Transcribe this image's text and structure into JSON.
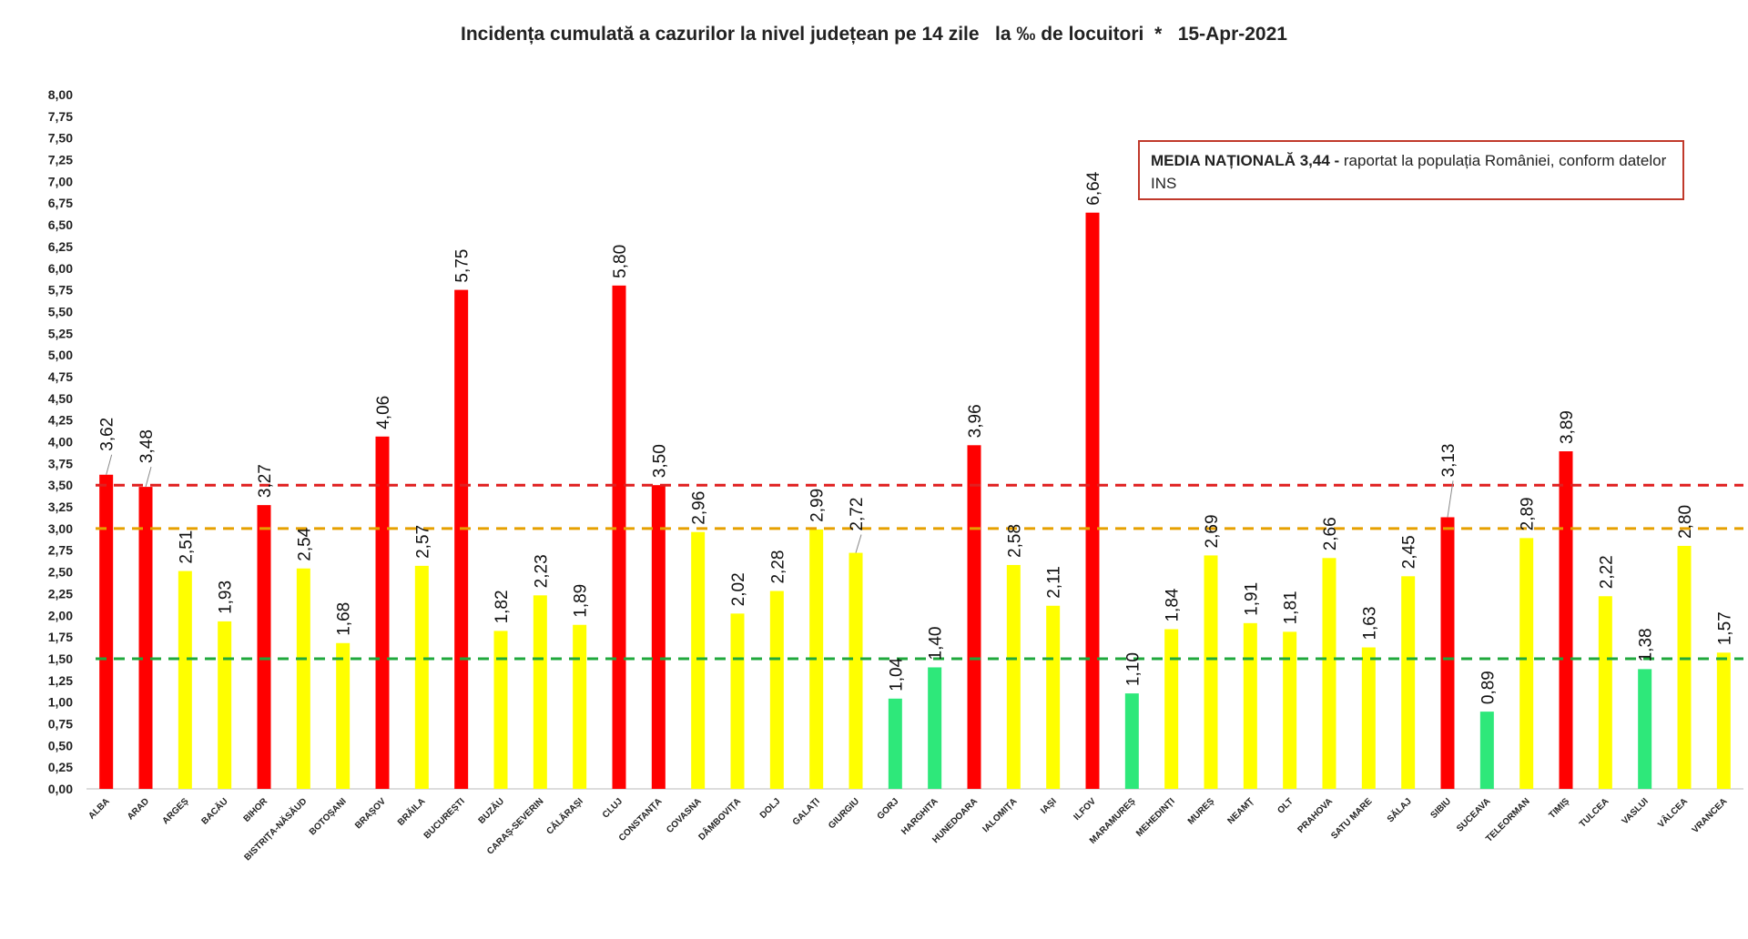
{
  "title": "Incidența cumulată a cazurilor la nivel județean pe 14 zile   la ‰ de locuitori  *   15-Apr-2021",
  "note": {
    "bold": "MEDIA NAȚIONALĂ 3,44 -",
    "text": " raportat la populația României, conform datelor INS"
  },
  "colors": {
    "red": "#ff0000",
    "yellow": "#ffff00",
    "green": "#2ee87a",
    "line_red": "#e02020",
    "line_orange": "#e6a000",
    "line_green": "#1fa83c"
  },
  "chart_data": {
    "type": "bar",
    "ylim": [
      0,
      8
    ],
    "ytick_step": 0.25,
    "grid": false,
    "reference_lines": [
      {
        "value": 3.5,
        "color": "red",
        "style": "dashed"
      },
      {
        "value": 3.0,
        "color": "orange",
        "style": "dashed"
      },
      {
        "value": 1.5,
        "color": "green",
        "style": "dashed"
      }
    ],
    "categories": [
      "ALBA",
      "ARAD",
      "ARGEȘ",
      "BACĂU",
      "BIHOR",
      "BISTRIȚA-NĂSĂUD",
      "BOTOȘANI",
      "BRAȘOV",
      "BRĂILA",
      "BUCUREȘTI",
      "BUZĂU",
      "CARAȘ-SEVERIN",
      "CĂLĂRAȘI",
      "CLUJ",
      "CONSTANȚA",
      "COVASNA",
      "DÂMBOVIȚA",
      "DOLJ",
      "GALAȚI",
      "GIURGIU",
      "GORJ",
      "HARGHITA",
      "HUNEDOARA",
      "IALOMIȚA",
      "IAȘI",
      "ILFOV",
      "MARAMUREȘ",
      "MEHEDINȚI",
      "MUREȘ",
      "NEAMȚ",
      "OLT",
      "PRAHOVA",
      "SATU MARE",
      "SĂLAJ",
      "SIBIU",
      "SUCEAVA",
      "TELEORMAN",
      "TIMIȘ",
      "TULCEA",
      "VASLUI",
      "VÂLCEA",
      "VRANCEA"
    ],
    "values": [
      3.62,
      3.48,
      2.51,
      1.93,
      3.27,
      2.54,
      1.68,
      4.06,
      2.57,
      5.75,
      1.82,
      2.23,
      1.89,
      5.8,
      3.5,
      2.96,
      2.02,
      2.28,
      2.99,
      2.72,
      1.04,
      1.4,
      3.96,
      2.58,
      2.11,
      6.64,
      1.1,
      1.84,
      2.69,
      1.91,
      1.81,
      2.66,
      1.63,
      2.45,
      3.13,
      0.89,
      2.89,
      3.89,
      2.22,
      1.38,
      2.8,
      1.57
    ],
    "labels": [
      "3,62",
      "3,48",
      "2,51",
      "1,93",
      "3,27",
      "2,54",
      "1,68",
      "4,06",
      "2,57",
      "5,75",
      "1,82",
      "2,23",
      "1,89",
      "5,80",
      "3,50",
      "2,96",
      "2,02",
      "2,28",
      "2,99",
      "2,72",
      "1,04",
      "1,40",
      "3,96",
      "2,58",
      "2,11",
      "6,64",
      "1,10",
      "1,84",
      "2,69",
      "1,91",
      "1,81",
      "2,66",
      "1,63",
      "2,45",
      "3,13",
      "0,89",
      "2,89",
      "3,89",
      "2,22",
      "1,38",
      "2,80",
      "1,57"
    ],
    "bar_colors": [
      "red",
      "red",
      "yellow",
      "yellow",
      "red",
      "yellow",
      "yellow",
      "red",
      "yellow",
      "red",
      "yellow",
      "yellow",
      "yellow",
      "red",
      "red",
      "yellow",
      "yellow",
      "yellow",
      "yellow",
      "yellow",
      "green",
      "green",
      "red",
      "yellow",
      "yellow",
      "red",
      "green",
      "yellow",
      "yellow",
      "yellow",
      "yellow",
      "yellow",
      "yellow",
      "yellow",
      "red",
      "green",
      "yellow",
      "red",
      "yellow",
      "green",
      "yellow",
      "yellow"
    ],
    "ytick_labels": [
      "0,00",
      "0,25",
      "0,50",
      "0,75",
      "1,00",
      "1,25",
      "1,50",
      "1,75",
      "2,00",
      "2,25",
      "2,50",
      "2,75",
      "3,00",
      "3,25",
      "3,50",
      "3,75",
      "4,00",
      "4,25",
      "4,50",
      "4,75",
      "5,00",
      "5,25",
      "5,50",
      "5,75",
      "6,00",
      "6,25",
      "6,50",
      "6,75",
      "7,00",
      "7,25",
      "7,50",
      "7,75",
      "8,00"
    ]
  }
}
